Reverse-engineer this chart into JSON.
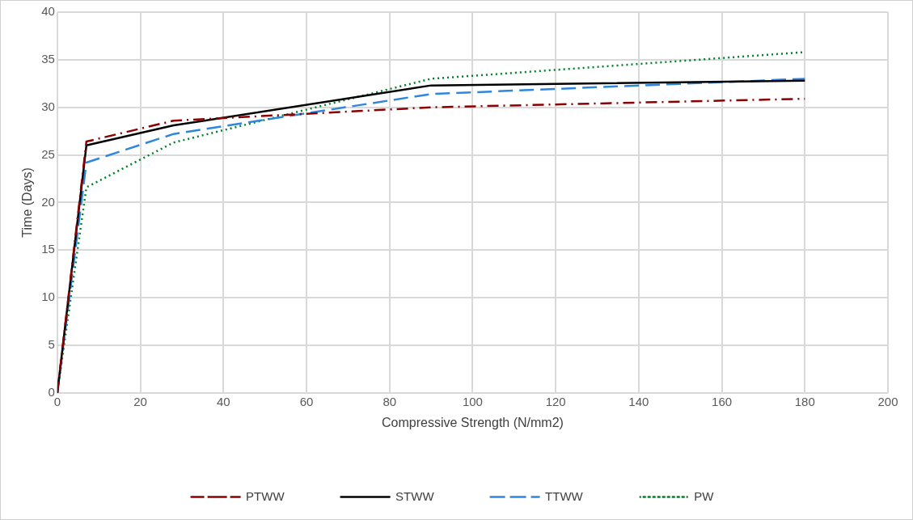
{
  "chart_data": {
    "type": "line",
    "xlabel": "Compressive Strength (N/mm2)",
    "ylabel": "Time (Days)",
    "xlim": [
      0,
      200
    ],
    "xticks": [
      0,
      20,
      40,
      60,
      80,
      100,
      120,
      140,
      160,
      180,
      200
    ],
    "ylim": [
      0,
      40
    ],
    "yticks": [
      0,
      5,
      10,
      15,
      20,
      25,
      30,
      35,
      40
    ],
    "grid": true,
    "legend": "bottom",
    "marker": "none",
    "series": [
      {
        "name": "PTWW",
        "color": "#8b0000",
        "line_style": "dashdot",
        "x": [
          0,
          7,
          28,
          90,
          180
        ],
        "values": [
          0,
          26.4,
          28.6,
          30.0,
          30.9
        ]
      },
      {
        "name": "STWW",
        "color": "#000000",
        "line_style": "solid",
        "x": [
          0,
          7,
          28,
          90,
          180
        ],
        "values": [
          0,
          26.0,
          28.1,
          32.3,
          32.8
        ]
      },
      {
        "name": "TTWW",
        "color": "#2e86de",
        "line_style": "dashed",
        "x": [
          0,
          7,
          28,
          90,
          180
        ],
        "values": [
          0,
          24.2,
          27.2,
          31.4,
          33.0
        ]
      },
      {
        "name": "PW",
        "color": "#00802b",
        "line_style": "dotted",
        "x": [
          0,
          7,
          28,
          90,
          180
        ],
        "values": [
          0,
          21.6,
          26.3,
          33.0,
          35.8
        ]
      }
    ]
  }
}
